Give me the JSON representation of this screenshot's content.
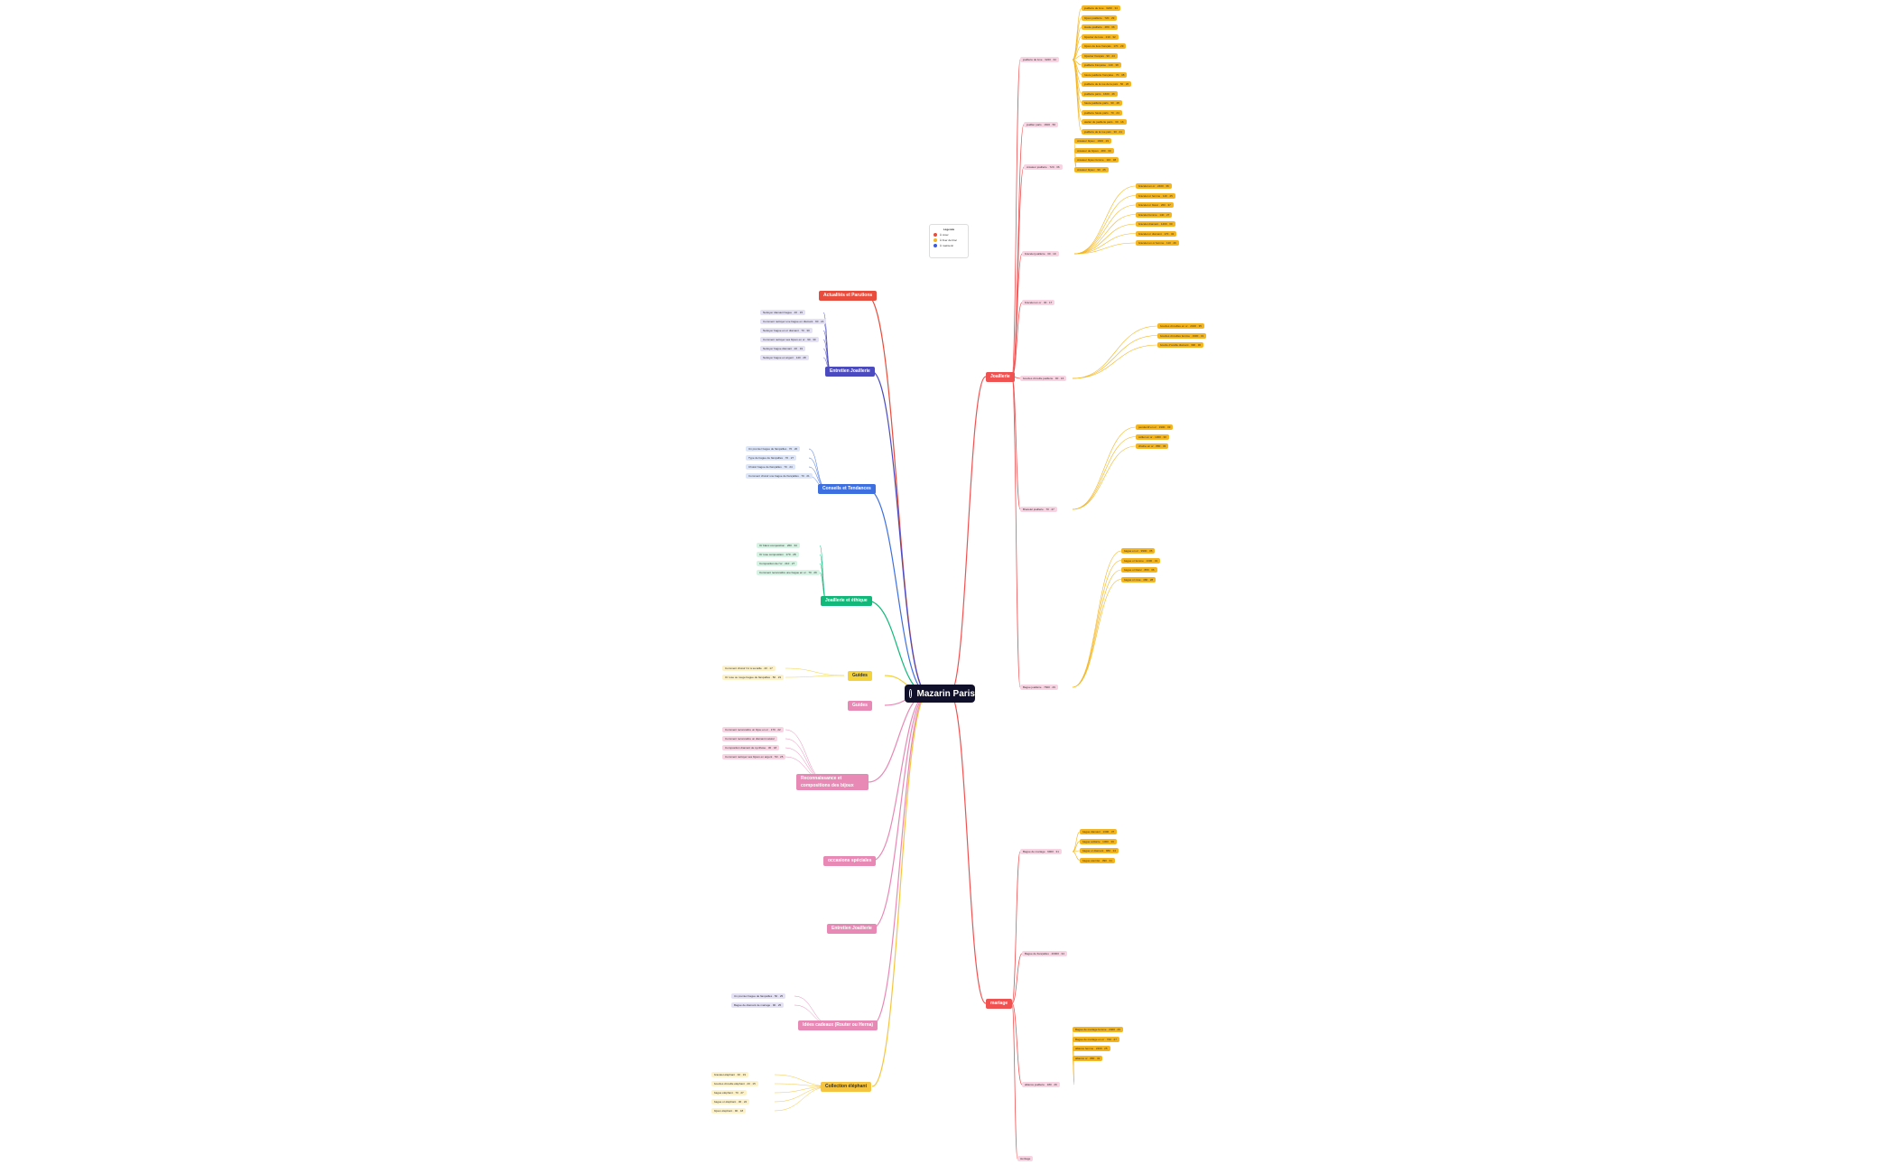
{
  "root": {
    "label": "Mazarin Paris"
  },
  "legend": {
    "title": "Légende",
    "items": [
      {
        "label": "À créer",
        "color": "#e74c3c"
      },
      {
        "label": "À fixer de bloc",
        "color": "#f5b51e"
      },
      {
        "label": "À maintenir",
        "color": "#3b5bdb"
      }
    ]
  },
  "branches": [
    {
      "label": "Actualités et Parutions",
      "color": "#e74c3c"
    },
    {
      "label": "Entretien Joaillerie",
      "color": "#4b4bbf"
    },
    {
      "label": "Conseils et Tendances",
      "color": "#3e6fe0"
    },
    {
      "label": "Joaillerie et éthique",
      "color": "#12b87a"
    },
    {
      "label": "Guides",
      "color": "#f3d23a"
    },
    {
      "label": "Guides",
      "color": "#e889b5"
    },
    {
      "label": "Reconnaissance et compositions des bijoux",
      "color": "#e889b5"
    },
    {
      "label": "occasions spéciales",
      "color": "#e889b5"
    },
    {
      "label": "Entretien Joaillerie",
      "color": "#e889b5"
    },
    {
      "label": "Idées cadeaux (Router ou Herna)",
      "color": "#e889b5"
    },
    {
      "label": "Collection éléphant",
      "color": "#f5c542"
    },
    {
      "label": "Joaillerie",
      "color": "#f05252"
    },
    {
      "label": "mariage",
      "color": "#f05252"
    }
  ],
  "right_groups": [
    {
      "label": "joaillerie de luxe · 3220 · 34"
    },
    {
      "label": "joaillier paris · 1600 · 56"
    },
    {
      "label": "créateur joaillerie · 720 · 36"
    },
    {
      "label": "bracelet joaillerie · 30 · 19"
    },
    {
      "label": "bracelet en or · 30 · 17"
    },
    {
      "label": "boucles d'oreille joaillerie · 90 · 16"
    },
    {
      "label": "Bracelet joaillerie · 70 · 27"
    },
    {
      "label": "Bague joaillerie · 7600 · 29"
    },
    {
      "label": "Bague de mariage · 9900 · 31"
    },
    {
      "label": "Bague de fiançailles · 40000 · 34"
    },
    {
      "label": "alliance joaillerie · 180 · 29"
    },
    {
      "label": "Héritage"
    }
  ],
  "gold_leaves": [
    "joaillerie de luxe · 3220 · 34",
    "bijoux joaillerie · 720 · 29",
    "Haute joaillerie · 480 · 36",
    "bijoutier de luxe · 210 · 32",
    "bijoux de luxe français · 170 · 29",
    "bijoutier français · 90 · 24",
    "joaillerie française · 140 · 38",
    "haute joaillerie française · 70 · 38",
    "joaillerie de la rue de la paix · 50 · 26",
    "joaillerie paris · 1600 · 46",
    "haute joaillerie paris · 90 · 48",
    "joaillerie haute paris · 70 · 24",
    "atelier de joaillerie paris · 30 · 16",
    "joaillerie de la rue paix · 30 · 21",
    "créateur bijoux · 1900 · 29",
    "créateur de bijoux · 480 · 30",
    "créateur bijoux femme · 110 · 38",
    "créateur bijoux · 90 · 25",
    "bracelet en or · 2400 · 36",
    "bracelet or femme · 140 · 25",
    "bracelet or blanc · 260 · 37",
    "bracelet femme · 140 · 27",
    "bracelet diamant · 1400 · 30",
    "bracelet or diamant · 170 · 32",
    "bracelet en or femme · 110 · 26",
    "boucles d'oreilles en or · 2400 · 35",
    "boucles d'oreilles femme · 1900 · 31",
    "boucle d'oreille diamant · 390 · 30",
    "pendentif en or · 1900 · 33",
    "collier en or · 1300 · 30",
    "chaîne en or · 880 · 33",
    "bague en or · 9900 · 35",
    "bague or femme · 1300 · 31",
    "bague or blanc · 880 · 36",
    "bague or rose · 480 · 28",
    "bague diamant · 1300 · 37",
    "bague solitaire · 1300 · 36",
    "bague or diamant · 880 · 34",
    "bague éternité · 390 · 31",
    "Bague de mariage femme · 2400 · 29",
    "Bague de mariage en or · 720 · 27",
    "alliance femme · 2400 · 25",
    "alliance or · 880 · 32"
  ],
  "left_leaves": [
    "Nettoyer diamant bague · 20 · 15",
    "Comment nettoyer une bague en diamant · 90 · 24",
    "Nettoyer bague en or diamant · 70 · 30",
    "Comment nettoyer ses bijoux en or · 90 · 30",
    "Nettoyer bague diamant · 20 · 19",
    "Nettoyer bague en argent · 140 · 28",
    "Un premier bague de fiançailles · 70 · 20",
    "Type de bague de fiançailles · 70 · 27",
    "Choisir bague de fiançailles · 70 · 24",
    "Comment choisir une bague de fiançailles · 70 · 21",
    "Or blanc composition · 260 · 34",
    "Or rose composition · 170 · 28",
    "Composition de l'or · 210 · 27",
    "Comment reconnaître une bague en or · 70 · 29",
    "Comment choisir l'or à sa taille · 40 · 17",
    "Or rose ou rouge bague de fiançailles · 50 · 23",
    "Comment reconnaître un bijou en or · 170 · 22",
    "Comment reconnaître un diamant naturel",
    "Composition diamant de synthèse · 30 · 18",
    "Comment nettoyer ses bijoux en argent · 50 · 25",
    "Un premier bague de fiançailles · 50 · 25",
    "Bague de diamant de mariage · 90 · 25",
    "bracelet éléphant · 30 · 19",
    "boucles d'oreille éléphant · 20 · 15",
    "bague éléphant · 70 · 27",
    "bague or éléphant · 30 · 22",
    "bijoux éléphant · 90 · 18"
  ]
}
